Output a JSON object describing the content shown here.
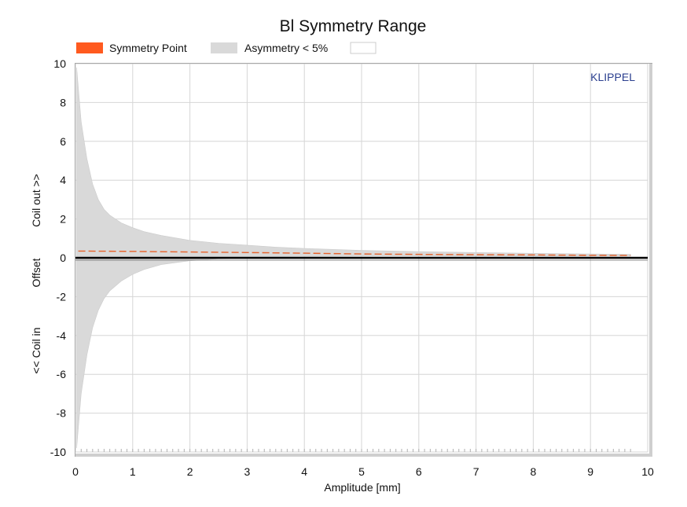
{
  "chart_data": {
    "type": "area",
    "title": "Bl Symmetry Range",
    "xlabel": "Amplitude [mm]",
    "ylabel_parts": [
      "<< Coil in",
      "Offset",
      "Coil out >>"
    ],
    "watermark": "KLIPPEL",
    "xlim": [
      0,
      10
    ],
    "ylim": [
      -10,
      10
    ],
    "x_ticks": [
      "0",
      "1",
      "2",
      "3",
      "4",
      "5",
      "6",
      "7",
      "8",
      "9",
      "10"
    ],
    "y_ticks": [
      "10",
      "8",
      "6",
      "4",
      "2",
      "0",
      "-2",
      "-4",
      "-6",
      "-8",
      "-10"
    ],
    "grid": true,
    "legend_position": "top",
    "legend": [
      {
        "label": "Symmetry Point",
        "color": "#ff5a1f"
      },
      {
        "label": "Asymmetry < 5%",
        "color": "#d9d9d9"
      },
      {
        "label": "",
        "color": "#ffffff"
      }
    ],
    "series": [
      {
        "name": "Symmetry Point",
        "color": "#e8622a",
        "style": "dashed",
        "x": [
          0.05,
          1,
          2,
          3,
          4,
          5,
          6,
          7,
          8,
          9,
          9.7
        ],
        "y": [
          0.35,
          0.33,
          0.3,
          0.27,
          0.24,
          0.2,
          0.18,
          0.16,
          0.15,
          0.13,
          0.12
        ]
      },
      {
        "name": "Asymmetry < 5%",
        "color": "#d9d9d9",
        "x": [
          0.02,
          0.1,
          0.2,
          0.3,
          0.4,
          0.5,
          0.6,
          0.8,
          1,
          1.2,
          1.5,
          2,
          2.5,
          3,
          3.5,
          4,
          5,
          6,
          7,
          8,
          9,
          9.7
        ],
        "upper": [
          9.8,
          7.0,
          5.1,
          3.8,
          3.0,
          2.5,
          2.2,
          1.8,
          1.55,
          1.35,
          1.15,
          0.9,
          0.75,
          0.65,
          0.55,
          0.48,
          0.38,
          0.32,
          0.27,
          0.23,
          0.2,
          0.18
        ],
        "lower": [
          -9.8,
          -7.0,
          -5.0,
          -3.6,
          -2.7,
          -2.1,
          -1.7,
          -1.2,
          -0.85,
          -0.6,
          -0.35,
          -0.15,
          -0.05,
          0.0,
          0.05,
          0.07,
          0.08,
          0.09,
          0.09,
          0.09,
          0.09,
          0.09
        ]
      },
      {
        "name": "",
        "color": "#000000",
        "x": [
          0,
          10
        ],
        "y": [
          0,
          0
        ]
      }
    ]
  }
}
